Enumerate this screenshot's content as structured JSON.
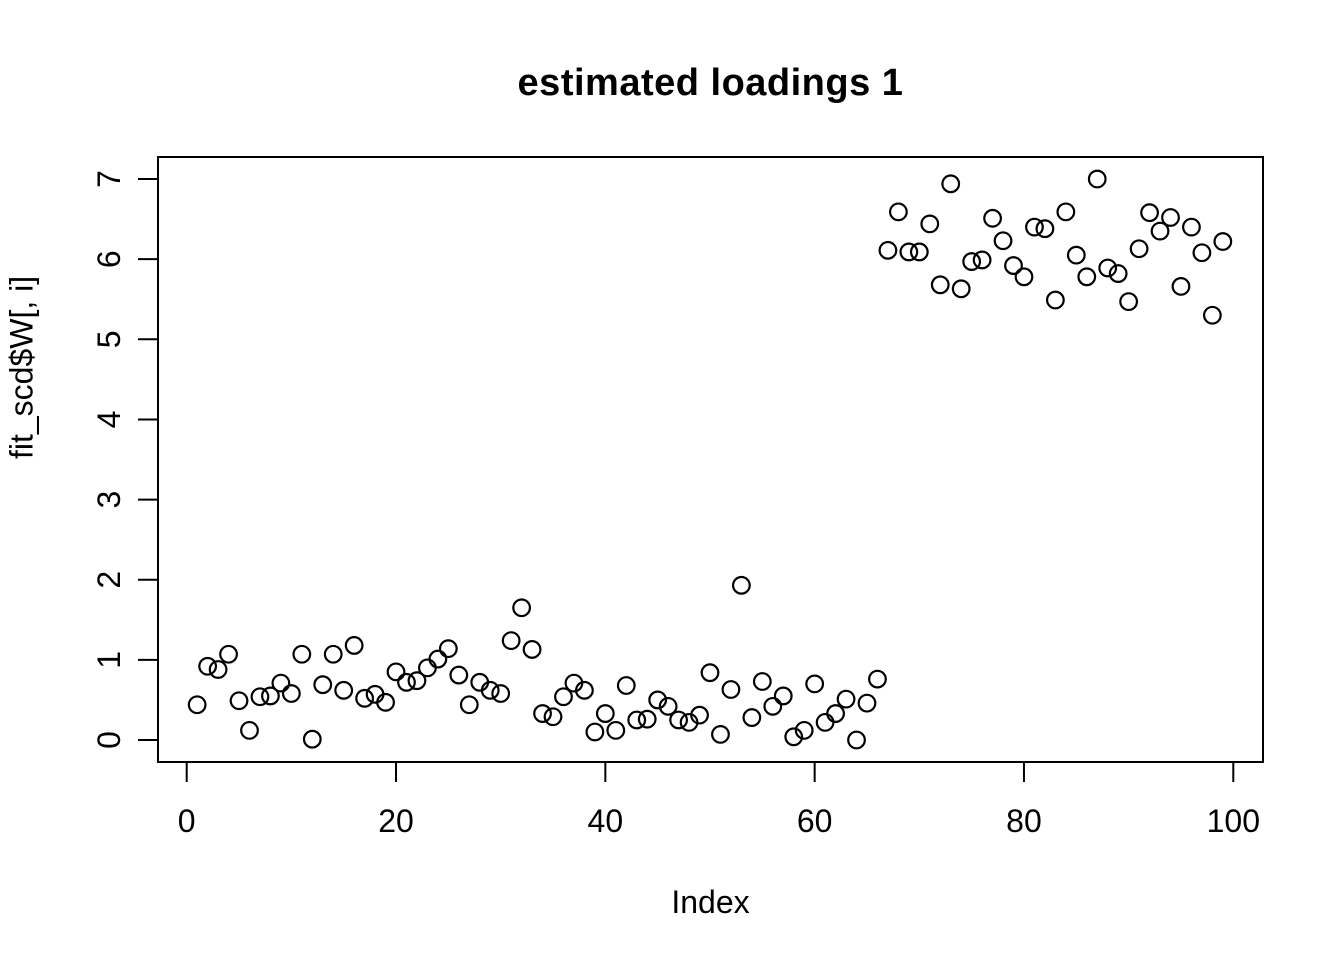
{
  "figure": {
    "title": "estimated loadings 1",
    "xlabel": "Index",
    "ylabel": "fit_scd$W[, i]"
  },
  "chart_data": {
    "type": "scatter",
    "title": "estimated loadings 1",
    "xlabel": "Index",
    "ylabel": "fit_scd$W[, i]",
    "x_ticks": [
      0,
      20,
      40,
      60,
      80,
      100
    ],
    "y_ticks": [
      0,
      1,
      2,
      3,
      4,
      5,
      6,
      7
    ],
    "xlim": [
      -2.9,
      102.9
    ],
    "ylim": [
      -0.27,
      7.26
    ],
    "grid": false,
    "legend_position": "none",
    "marker": "open-circle",
    "marker_color": "#000000",
    "x": [
      1,
      2,
      3,
      4,
      5,
      6,
      7,
      8,
      9,
      10,
      11,
      12,
      13,
      14,
      15,
      16,
      17,
      18,
      19,
      20,
      21,
      22,
      23,
      24,
      25,
      26,
      27,
      28,
      29,
      30,
      31,
      32,
      33,
      34,
      35,
      36,
      37,
      38,
      39,
      40,
      41,
      42,
      43,
      44,
      45,
      46,
      47,
      48,
      49,
      50,
      51,
      52,
      53,
      54,
      55,
      56,
      57,
      58,
      59,
      60,
      61,
      62,
      63,
      64,
      65,
      66,
      67,
      68,
      69,
      70,
      71,
      72,
      73,
      74,
      75,
      76,
      77,
      78,
      79,
      80,
      81,
      82,
      83,
      84,
      85,
      86,
      87,
      88,
      89,
      90,
      91,
      92,
      93,
      94,
      95,
      96,
      97,
      98,
      99
    ],
    "y": [
      0.44,
      0.92,
      0.88,
      1.07,
      0.49,
      0.12,
      0.54,
      0.55,
      0.71,
      0.58,
      1.07,
      0.01,
      0.69,
      1.07,
      0.62,
      1.18,
      0.52,
      0.57,
      0.47,
      0.85,
      0.72,
      0.74,
      0.9,
      1.01,
      1.14,
      0.81,
      0.44,
      0.72,
      0.62,
      0.58,
      1.24,
      1.65,
      1.13,
      0.33,
      0.29,
      0.54,
      0.71,
      0.62,
      0.1,
      0.33,
      0.12,
      0.68,
      0.25,
      0.26,
      0.5,
      0.42,
      0.25,
      0.22,
      0.31,
      0.84,
      0.07,
      0.63,
      1.93,
      0.28,
      0.73,
      0.42,
      0.55,
      0.04,
      0.12,
      0.7,
      0.22,
      0.33,
      0.51,
      0.0,
      0.46,
      0.76,
      6.11,
      6.59,
      6.09,
      6.09,
      6.44,
      5.68,
      6.94,
      5.63,
      5.97,
      5.99,
      6.51,
      6.23,
      5.92,
      5.78,
      6.4,
      6.38,
      5.49,
      6.59,
      6.05,
      5.78,
      7.0,
      5.89,
      5.82,
      5.47,
      6.13,
      6.58,
      6.35,
      6.52,
      5.66,
      6.4,
      6.08,
      5.3,
      6.22
    ]
  }
}
